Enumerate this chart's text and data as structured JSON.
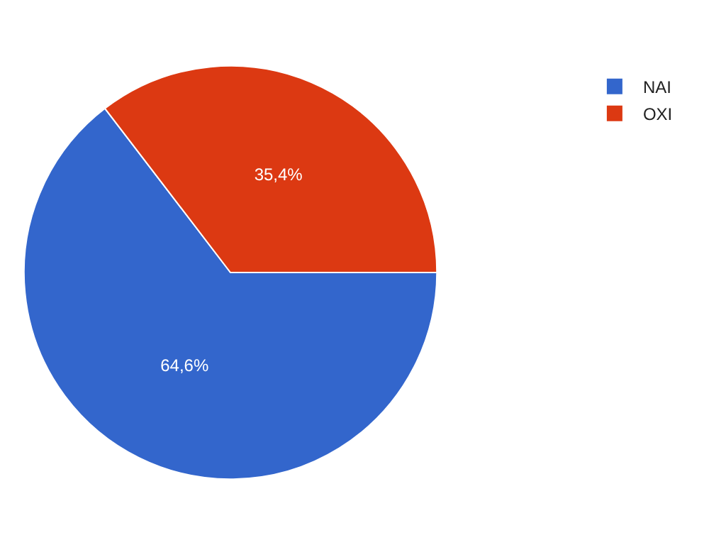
{
  "chart_data": {
    "type": "pie",
    "categories": [
      "ΝΑΙ",
      "ΟΧΙ"
    ],
    "values": [
      64.6,
      35.4
    ],
    "colors": [
      "#3366cc",
      "#dc3912"
    ],
    "value_labels": [
      "64,6%",
      "35,4%"
    ],
    "legend": "top right"
  }
}
